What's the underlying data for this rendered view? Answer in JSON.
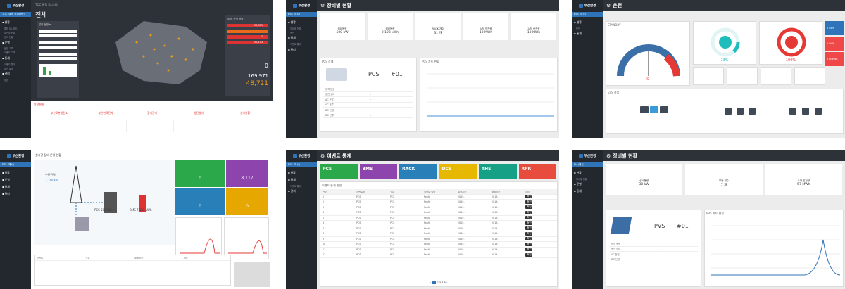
{
  "p1": {
    "subtitle": "TOC 통합 모니터링",
    "title": "전체",
    "site": "TOC (통합 모니터링)",
    "menu_head": "SOC 운영 현황",
    "stats": [
      "소계",
      "33,379",
      "7",
      "52,173",
      "0",
      "169,971",
      "48,721"
    ],
    "tabs": [
      "부산로봇발전소",
      "부산연료전지",
      "장비관리",
      "발전설비",
      "설비현황"
    ]
  },
  "p2": {
    "title": "장비별 현황",
    "tiles": [
      {
        "label": "설비용량",
        "value": "500",
        "unit": "kW"
      },
      {
        "label": "설비용량",
        "value": "2,123",
        "unit": "kWh"
      },
      {
        "label": "RACK 개수",
        "value": "31",
        "unit": "개"
      },
      {
        "label": "누적 방전량",
        "value": "10",
        "unit": "MWh"
      },
      {
        "label": "누적 충전량",
        "value": "10",
        "unit": "MWh"
      }
    ],
    "pcs_title": "PCS 상세",
    "pcs_big": "PCS",
    "pcs_no": "#01",
    "chart_title": "PCS 차트 현황"
  },
  "p3": {
    "title": "운전",
    "standby": "STANDBY",
    "gauge_val": "0",
    "soc": "13%",
    "soh": "100%",
    "kpis": [
      "0 kWh",
      "0 kWh",
      "274 kWh"
    ],
    "ess": "ESS 설정"
  },
  "p4": {
    "title": "실시간 장비 운영 현황",
    "vals": [
      "0",
      "8,117",
      "0",
      "0",
      "0",
      "0"
    ],
    "pcs": "500",
    "rack": "7,133",
    "grid": "2,140"
  },
  "p5": {
    "title": "이벤트 통계",
    "cats": [
      "PCS",
      "BMS",
      "RACK",
      "DCS",
      "THS",
      "RPR"
    ],
    "cat_colors": [
      "#2ba84a",
      "#8e44ad",
      "#2980b9",
      "#e6b800",
      "#16a085",
      "#e74c3c"
    ],
    "rows": [
      "PCS",
      "PCS",
      "PCS",
      "PCS",
      "PCS",
      "PCS",
      "PCS",
      "PCS",
      "PCS",
      "PCS",
      "PCS",
      "PCS"
    ],
    "table_title": "이벤트 통계 현황"
  },
  "p6": {
    "title": "장비별 현황",
    "tiles": [
      {
        "label": "설비용량",
        "value": "30",
        "unit": "kW"
      },
      {
        "label": "모듈 개수",
        "value": "7",
        "unit": "개"
      },
      {
        "label": "누적 발전량",
        "value": "57",
        "unit": "MWh"
      }
    ],
    "pv_big": "PVS",
    "pv_no": "#01",
    "chart_title": "PVS 차트 현황"
  }
}
